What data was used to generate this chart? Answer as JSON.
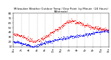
{
  "title": "Milwaukee Weather Outdoor Temp / Dew Point  by Minute  (24 Hours) (Alternate)",
  "title_fontsize": 2.8,
  "background_color": "#ffffff",
  "plot_bg_color": "#ffffff",
  "grid_color": "#aaaaaa",
  "temp_color": "#ff0000",
  "dew_color": "#0000ff",
  "ylim": [
    10,
    80
  ],
  "xlim": [
    0,
    1440
  ],
  "ylabel_fontsize": 2.8,
  "xlabel_fontsize": 2.5,
  "yticks": [
    10,
    20,
    30,
    40,
    50,
    60,
    70,
    80
  ],
  "xtick_hours": [
    0,
    2,
    4,
    6,
    8,
    10,
    12,
    14,
    16,
    18,
    20,
    22,
    24
  ],
  "xtick_labels": [
    "12a",
    "2a",
    "4a",
    "6a",
    "8a",
    "10a",
    "12p",
    "2p",
    "4p",
    "6p",
    "8p",
    "10p",
    "12a"
  ]
}
